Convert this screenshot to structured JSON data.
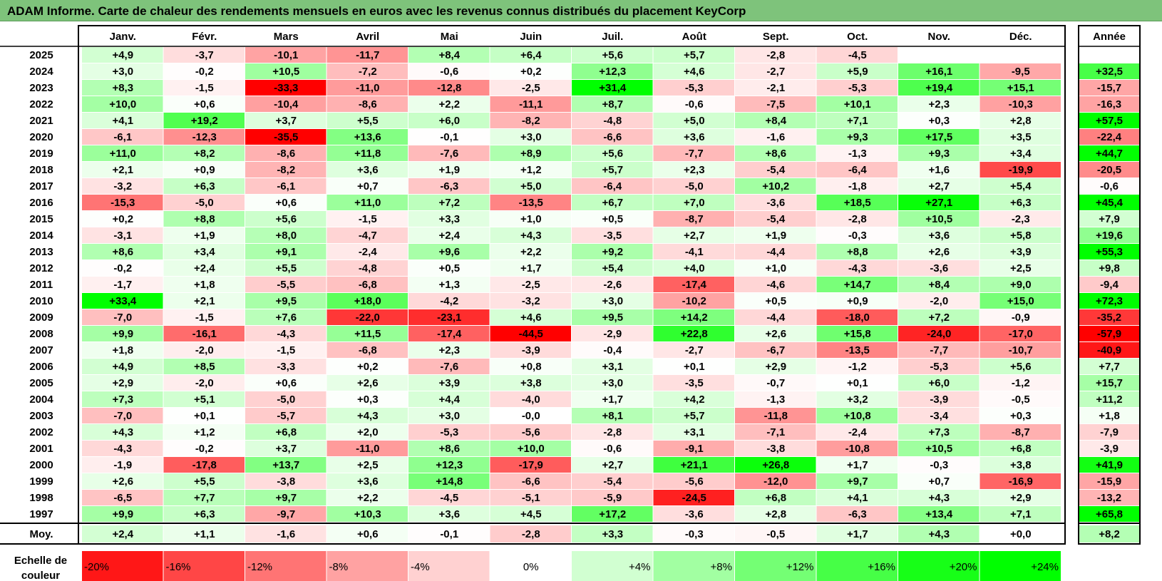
{
  "title": "ADAM Informe. Carte de chaleur des rendements mensuels en euros avec les revenus connus distribués du placement KeyCorp",
  "chart_data": {
    "type": "heatmap",
    "months": [
      "Janv.",
      "Févr.",
      "Mars",
      "Avril",
      "Mai",
      "Juin",
      "Juil.",
      "Août",
      "Sept.",
      "Oct.",
      "Nov.",
      "Déc."
    ],
    "year_label": "Année",
    "rows": [
      {
        "year": "2025",
        "values": [
          "+4,9",
          "-3,7",
          "-10,1",
          "-11,7",
          "+8,4",
          "+6,4",
          "+5,6",
          "+5,7",
          "-2,8",
          "-4,5",
          "",
          ""
        ],
        "annual": ""
      },
      {
        "year": "2024",
        "values": [
          "+3,0",
          "-0,2",
          "+10,5",
          "-7,2",
          "-0,6",
          "+0,2",
          "+12,3",
          "+4,6",
          "-2,7",
          "+5,9",
          "+16,1",
          "-9,5"
        ],
        "annual": "+32,5"
      },
      {
        "year": "2023",
        "values": [
          "+8,3",
          "-1,5",
          "-33,3",
          "-11,0",
          "-12,8",
          "-2,5",
          "+31,4",
          "-5,3",
          "-2,1",
          "-5,3",
          "+19,4",
          "+15,1"
        ],
        "annual": "-15,7"
      },
      {
        "year": "2022",
        "values": [
          "+10,0",
          "+0,6",
          "-10,4",
          "-8,6",
          "+2,2",
          "-11,1",
          "+8,7",
          "-0,6",
          "-7,5",
          "+10,1",
          "+2,3",
          "-10,3"
        ],
        "annual": "-16,3"
      },
      {
        "year": "2021",
        "values": [
          "+4,1",
          "+19,2",
          "+3,7",
          "+5,5",
          "+6,0",
          "-8,2",
          "-4,8",
          "+5,0",
          "+8,4",
          "+7,1",
          "+0,3",
          "+2,8"
        ],
        "annual": "+57,5"
      },
      {
        "year": "2020",
        "values": [
          "-6,1",
          "-12,3",
          "-35,5",
          "+13,6",
          "-0,1",
          "+3,0",
          "-6,6",
          "+3,6",
          "-1,6",
          "+9,3",
          "+17,5",
          "+3,5"
        ],
        "annual": "-22,4"
      },
      {
        "year": "2019",
        "values": [
          "+11,0",
          "+8,2",
          "-8,6",
          "+11,8",
          "-7,6",
          "+8,9",
          "+5,6",
          "-7,7",
          "+8,6",
          "-1,3",
          "+9,3",
          "+3,4"
        ],
        "annual": "+44,7"
      },
      {
        "year": "2018",
        "values": [
          "+2,1",
          "+0,9",
          "-8,2",
          "+3,6",
          "+1,9",
          "+1,2",
          "+5,7",
          "+2,3",
          "-5,4",
          "-6,4",
          "+1,6",
          "-19,9"
        ],
        "annual": "-20,5"
      },
      {
        "year": "2017",
        "values": [
          "-3,2",
          "+6,3",
          "-6,1",
          "+0,7",
          "-6,3",
          "+5,0",
          "-6,4",
          "-5,0",
          "+10,2",
          "-1,8",
          "+2,7",
          "+5,4"
        ],
        "annual": "-0,6"
      },
      {
        "year": "2016",
        "values": [
          "-15,3",
          "-5,0",
          "+0,6",
          "+11,0",
          "+7,2",
          "-13,5",
          "+6,7",
          "+7,0",
          "-3,6",
          "+18,5",
          "+27,1",
          "+6,3"
        ],
        "annual": "+45,4"
      },
      {
        "year": "2015",
        "values": [
          "+0,2",
          "+8,8",
          "+5,6",
          "-1,5",
          "+3,3",
          "+1,0",
          "+0,5",
          "-8,7",
          "-5,4",
          "-2,8",
          "+10,5",
          "-2,3"
        ],
        "annual": "+7,9"
      },
      {
        "year": "2014",
        "values": [
          "-3,1",
          "+1,9",
          "+8,0",
          "-4,7",
          "+2,4",
          "+4,3",
          "-3,5",
          "+2,7",
          "+1,9",
          "-0,3",
          "+3,6",
          "+5,8"
        ],
        "annual": "+19,6"
      },
      {
        "year": "2013",
        "values": [
          "+8,6",
          "+3,4",
          "+9,1",
          "-2,4",
          "+9,6",
          "+2,2",
          "+9,2",
          "-4,1",
          "-4,4",
          "+8,8",
          "+2,6",
          "+3,9"
        ],
        "annual": "+55,3"
      },
      {
        "year": "2012",
        "values": [
          "-0,2",
          "+2,4",
          "+5,5",
          "-4,8",
          "+0,5",
          "+1,7",
          "+5,4",
          "+4,0",
          "+1,0",
          "-4,3",
          "-3,6",
          "+2,5"
        ],
        "annual": "+9,8"
      },
      {
        "year": "2011",
        "values": [
          "-1,7",
          "+1,8",
          "-5,5",
          "-6,8",
          "+1,3",
          "-2,5",
          "-2,6",
          "-17,4",
          "-4,6",
          "+14,7",
          "+8,4",
          "+9,0"
        ],
        "annual": "-9,4"
      },
      {
        "year": "2010",
        "values": [
          "+33,4",
          "+2,1",
          "+9,5",
          "+18,0",
          "-4,2",
          "-3,2",
          "+3,0",
          "-10,2",
          "+0,5",
          "+0,9",
          "-2,0",
          "+15,0"
        ],
        "annual": "+72,3"
      },
      {
        "year": "2009",
        "values": [
          "-7,0",
          "-1,5",
          "+7,6",
          "-22,0",
          "-23,1",
          "+4,6",
          "+9,5",
          "+14,2",
          "-4,4",
          "-18,0",
          "+7,2",
          "-0,9"
        ],
        "annual": "-35,2"
      },
      {
        "year": "2008",
        "values": [
          "+9,9",
          "-16,1",
          "-4,3",
          "+11,5",
          "-17,4",
          "-44,5",
          "-2,9",
          "+22,8",
          "+2,6",
          "+15,8",
          "-24,0",
          "-17,0"
        ],
        "annual": "-57,9"
      },
      {
        "year": "2007",
        "values": [
          "+1,8",
          "-2,0",
          "-1,5",
          "-6,8",
          "+2,3",
          "-3,9",
          "-0,4",
          "-2,7",
          "-6,7",
          "-13,5",
          "-7,7",
          "-10,7"
        ],
        "annual": "-40,9"
      },
      {
        "year": "2006",
        "values": [
          "+4,9",
          "+8,5",
          "-3,3",
          "+0,2",
          "-7,6",
          "+0,8",
          "+3,1",
          "+0,1",
          "+2,9",
          "-1,2",
          "-5,3",
          "+5,6"
        ],
        "annual": "+7,7"
      },
      {
        "year": "2005",
        "values": [
          "+2,9",
          "-2,0",
          "+0,6",
          "+2,6",
          "+3,9",
          "+3,8",
          "+3,0",
          "-3,5",
          "-0,7",
          "+0,1",
          "+6,0",
          "-1,2"
        ],
        "annual": "+15,7"
      },
      {
        "year": "2004",
        "values": [
          "+7,3",
          "+5,1",
          "-5,0",
          "+0,3",
          "+4,4",
          "-4,0",
          "+1,7",
          "+4,2",
          "-1,3",
          "+3,2",
          "-3,9",
          "-0,5"
        ],
        "annual": "+11,2"
      },
      {
        "year": "2003",
        "values": [
          "-7,0",
          "+0,1",
          "-5,7",
          "+4,3",
          "+3,0",
          "-0,0",
          "+8,1",
          "+5,7",
          "-11,8",
          "+10,8",
          "-3,4",
          "+0,3"
        ],
        "annual": "+1,8"
      },
      {
        "year": "2002",
        "values": [
          "+4,3",
          "+1,2",
          "+6,8",
          "+2,0",
          "-5,3",
          "-5,6",
          "-2,8",
          "+3,1",
          "-7,1",
          "-2,4",
          "+7,3",
          "-8,7"
        ],
        "annual": "-7,9"
      },
      {
        "year": "2001",
        "values": [
          "-4,3",
          "-0,2",
          "+3,7",
          "-11,0",
          "+8,6",
          "+10,0",
          "-0,6",
          "-9,1",
          "-3,8",
          "-10,8",
          "+10,5",
          "+6,8"
        ],
        "annual": "-3,9"
      },
      {
        "year": "2000",
        "values": [
          "-1,9",
          "-17,8",
          "+13,7",
          "+2,5",
          "+12,3",
          "-17,9",
          "+2,7",
          "+21,1",
          "+26,8",
          "+1,7",
          "-0,3",
          "+3,8"
        ],
        "annual": "+41,9"
      },
      {
        "year": "1999",
        "values": [
          "+2,6",
          "+5,5",
          "-3,8",
          "+3,6",
          "+14,8",
          "-6,6",
          "-5,4",
          "-5,6",
          "-12,0",
          "+9,7",
          "+0,7",
          "-16,9"
        ],
        "annual": "-15,9"
      },
      {
        "year": "1998",
        "values": [
          "-6,5",
          "+7,7",
          "+9,7",
          "+2,2",
          "-4,5",
          "-5,1",
          "-5,9",
          "-24,5",
          "+6,8",
          "+4,1",
          "+4,3",
          "+2,9"
        ],
        "annual": "-13,2"
      },
      {
        "year": "1997",
        "values": [
          "+9,9",
          "+6,3",
          "-9,7",
          "+10,3",
          "+3,6",
          "+4,5",
          "+17,2",
          "-3,6",
          "+2,8",
          "-6,3",
          "+13,4",
          "+7,1"
        ],
        "annual": "+65,8"
      }
    ],
    "average": {
      "label": "Moy.",
      "values": [
        "+2,4",
        "+1,1",
        "-1,6",
        "+0,6",
        "-0,1",
        "-2,8",
        "+3,3",
        "-0,3",
        "-0,5",
        "+1,7",
        "+4,3",
        "+0,0"
      ],
      "annual": "+8,2"
    },
    "color_scale": {
      "label_line1": "Echelle de",
      "label_line2": "couleur",
      "stops": [
        "-20%",
        "-16%",
        "-12%",
        "-8%",
        "-4%",
        "0%",
        "+4%",
        "+8%",
        "+12%",
        "+16%",
        "+20%",
        "+24%"
      ],
      "stop_values": [
        -20,
        -16,
        -12,
        -8,
        -4,
        0,
        4,
        8,
        12,
        16,
        20,
        24
      ]
    },
    "colors": {
      "negative_max": "#ff0000",
      "positive_max": "#00ff00",
      "neutral": "#ffffff",
      "title_bar": "#7ec37b"
    }
  }
}
